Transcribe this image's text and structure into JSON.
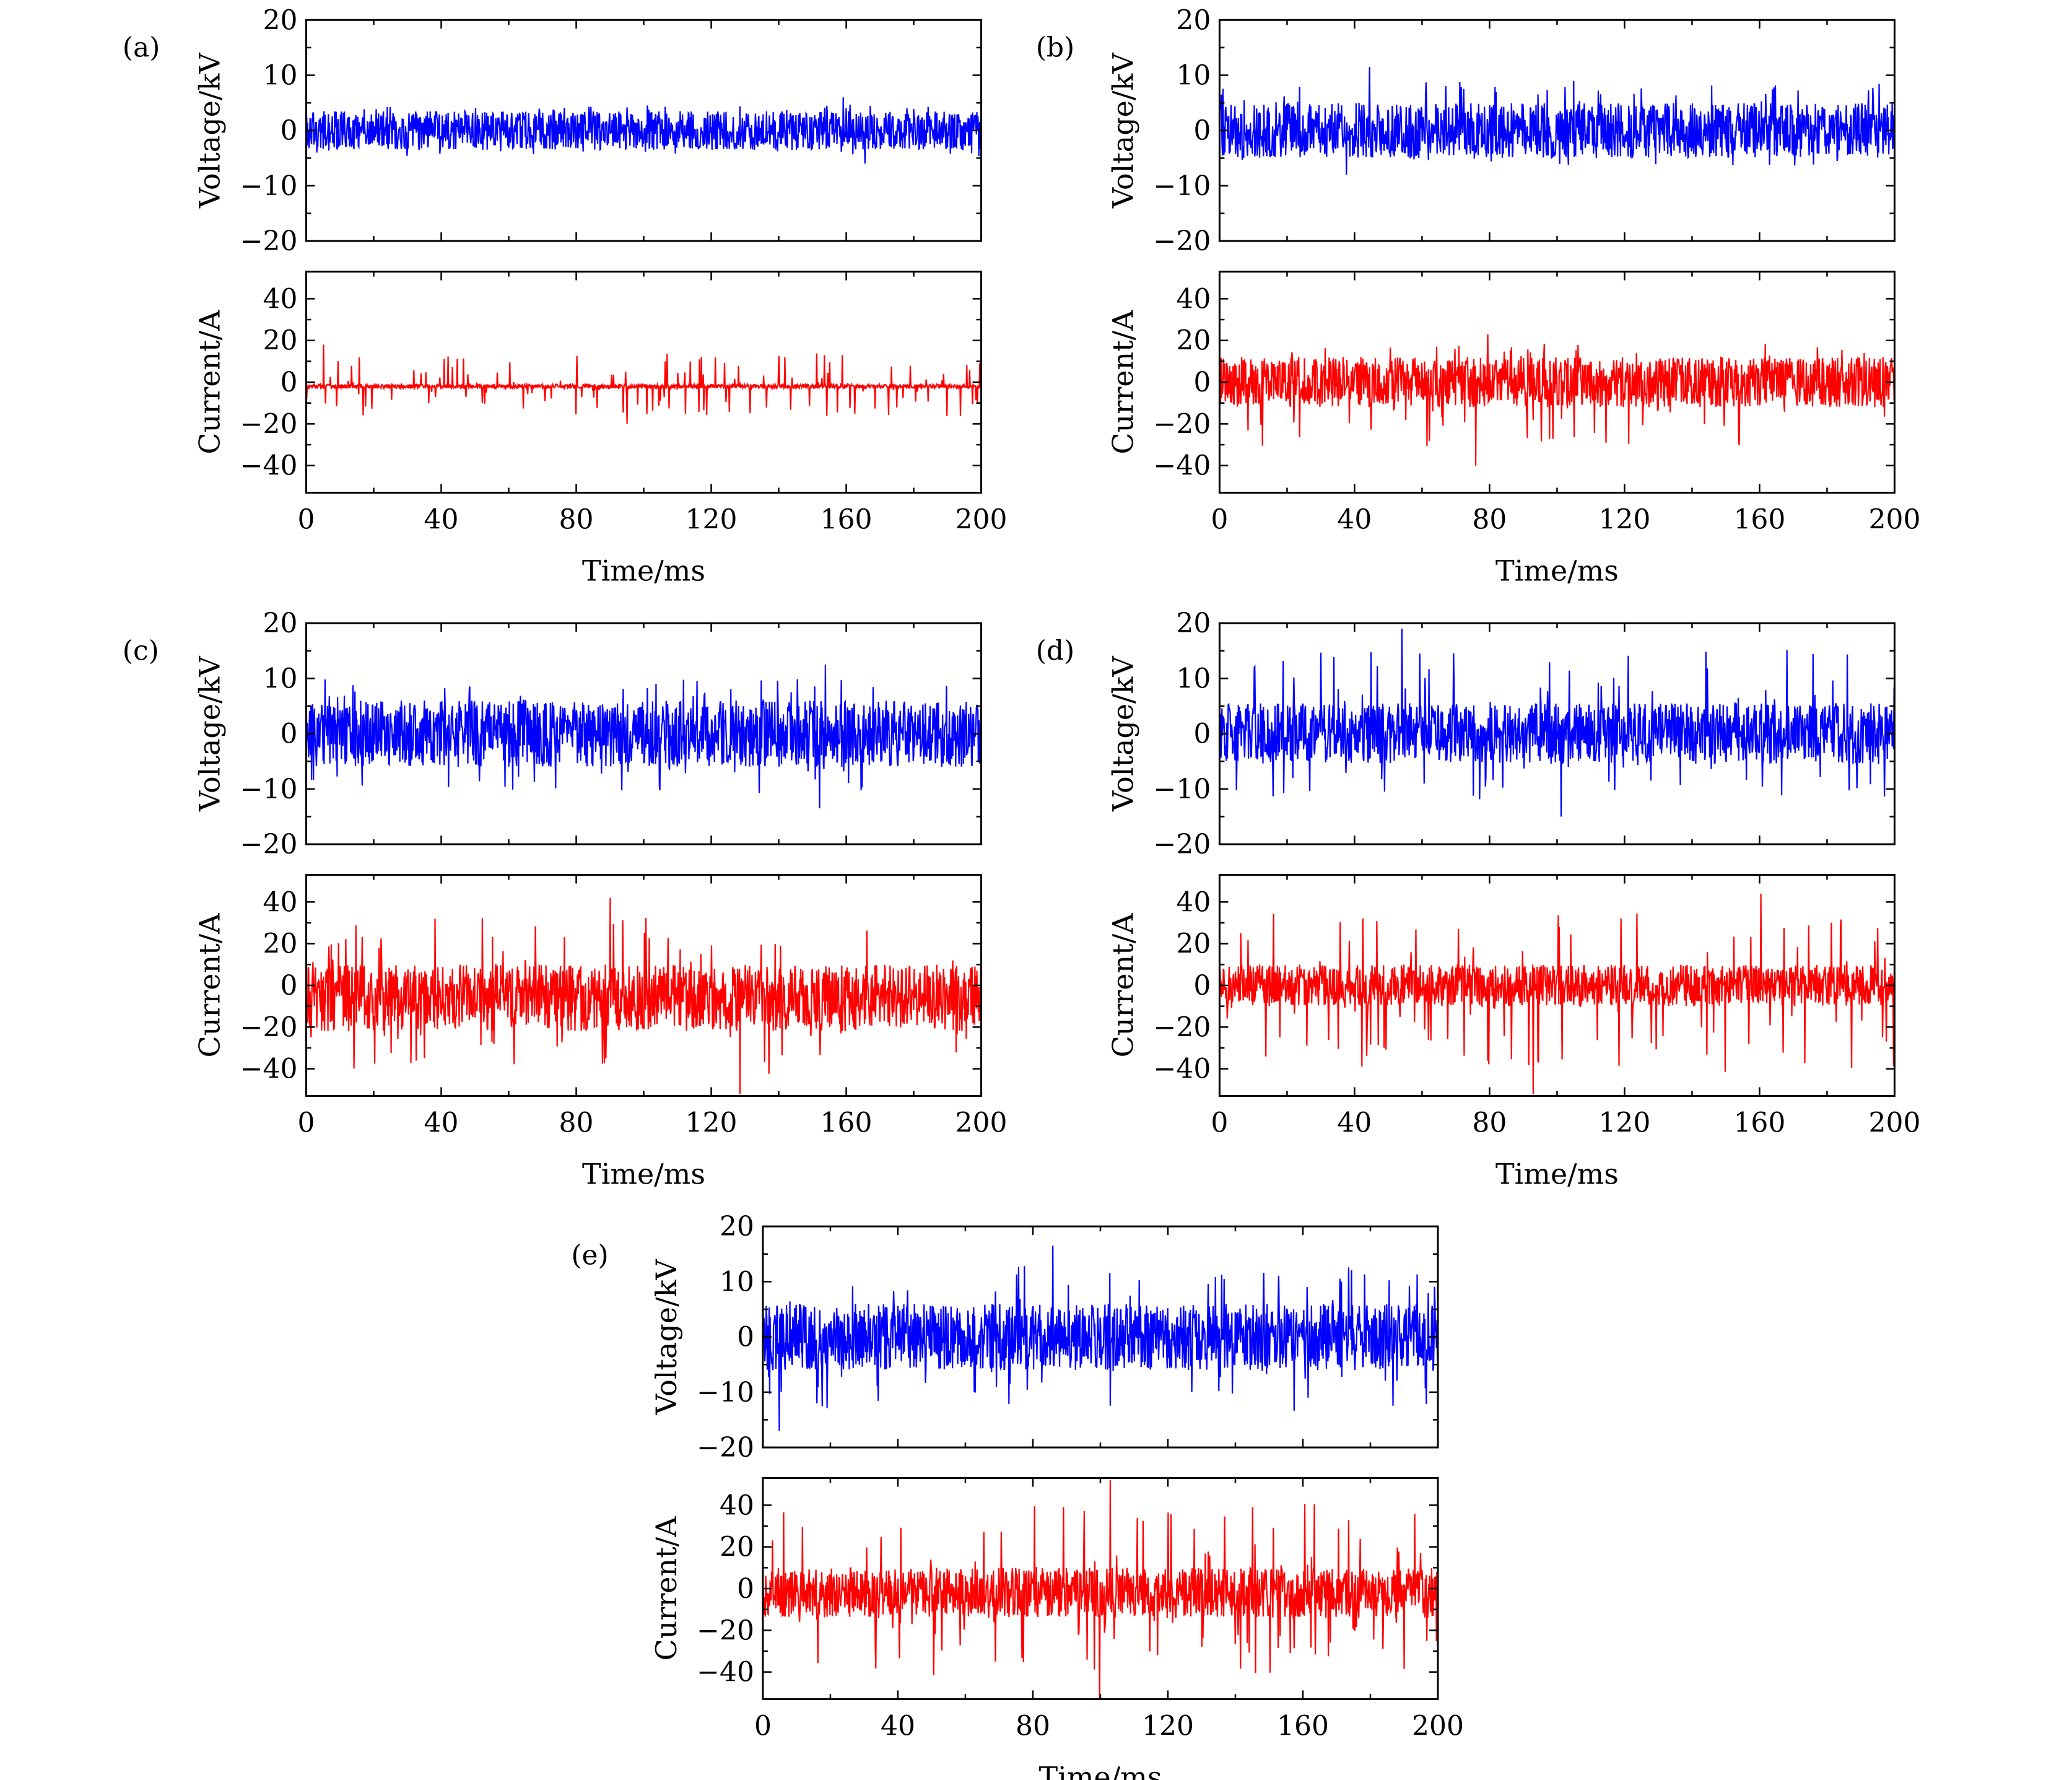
{
  "chart_data": [
    {
      "type": "line",
      "panel_label": "(a)",
      "x": {
        "label": "Time/ms",
        "range": [
          0,
          200
        ],
        "ticks": [
          "0",
          "40",
          "80",
          "120",
          "160",
          "200"
        ]
      },
      "series": [
        {
          "name": "Voltage",
          "ylabel": "Voltage/kV",
          "ylim": [
            -20,
            20
          ],
          "yticks": [
            "20",
            "10",
            "0",
            "−10",
            "−20"
          ],
          "color": "#0000ff",
          "baseline": 0,
          "noise_amplitude": 3.5,
          "max_peak": 6,
          "min_peak": -6
        },
        {
          "name": "Current",
          "ylabel": "Current/A",
          "ylim": [
            -53,
            53
          ],
          "yticks": [
            "40",
            "20",
            "0",
            "−20",
            "−40"
          ],
          "color": "#ff0000",
          "baseline": -2,
          "noise_amplitude": 1,
          "max_peak": 18,
          "min_peak": -20
        }
      ]
    },
    {
      "type": "line",
      "panel_label": "(b)",
      "x": {
        "label": "Time/ms",
        "range": [
          0,
          200
        ],
        "ticks": [
          "0",
          "40",
          "80",
          "120",
          "160",
          "200"
        ]
      },
      "series": [
        {
          "name": "Voltage",
          "ylabel": "Voltage/kV",
          "ylim": [
            -20,
            20
          ],
          "yticks": [
            "20",
            "10",
            "0",
            "−10",
            "−20"
          ],
          "color": "#0000ff",
          "baseline": 0,
          "noise_amplitude": 5,
          "max_peak": 11.5,
          "min_peak": -8
        },
        {
          "name": "Current",
          "ylabel": "Current/A",
          "ylim": [
            -53,
            53
          ],
          "yticks": [
            "40",
            "20",
            "0",
            "−20",
            "−40"
          ],
          "color": "#ff0000",
          "baseline": 0,
          "noise_amplitude": 12,
          "max_peak": 23,
          "min_peak": -40
        }
      ]
    },
    {
      "type": "line",
      "panel_label": "(c)",
      "x": {
        "label": "Time/ms",
        "range": [
          0,
          200
        ],
        "ticks": [
          "0",
          "40",
          "80",
          "120",
          "160",
          "200"
        ]
      },
      "series": [
        {
          "name": "Voltage",
          "ylabel": "Voltage/kV",
          "ylim": [
            -20,
            20
          ],
          "yticks": [
            "20",
            "10",
            "0",
            "−10",
            "−20"
          ],
          "color": "#0000ff",
          "baseline": 0,
          "noise_amplitude": 6,
          "max_peak": 12.5,
          "min_peak": -13.5
        },
        {
          "name": "Current",
          "ylabel": "Current/A",
          "ylim": [
            -53,
            53
          ],
          "yticks": [
            "40",
            "20",
            "0",
            "−20",
            "−40"
          ],
          "color": "#ff0000",
          "baseline": -6,
          "noise_amplitude": 16,
          "max_peak": 42,
          "min_peak": -52
        }
      ]
    },
    {
      "type": "line",
      "panel_label": "(d)",
      "x": {
        "label": "Time/ms",
        "range": [
          0,
          200
        ],
        "ticks": [
          "0",
          "40",
          "80",
          "120",
          "160",
          "200"
        ]
      },
      "series": [
        {
          "name": "Voltage",
          "ylabel": "Voltage/kV",
          "ylim": [
            -20,
            20
          ],
          "yticks": [
            "20",
            "10",
            "0",
            "−10",
            "−20"
          ],
          "color": "#0000ff",
          "baseline": 0,
          "noise_amplitude": 5.5,
          "max_peak": 19,
          "min_peak": -15
        },
        {
          "name": "Current",
          "ylabel": "Current/A",
          "ylim": [
            -53,
            53
          ],
          "yticks": [
            "40",
            "20",
            "0",
            "−20",
            "−40"
          ],
          "color": "#ff0000",
          "baseline": 0,
          "noise_amplitude": 10,
          "max_peak": 44,
          "min_peak": -52
        }
      ]
    },
    {
      "type": "line",
      "panel_label": "(e)",
      "x": {
        "label": "Time/ms",
        "range": [
          0,
          200
        ],
        "ticks": [
          "0",
          "40",
          "80",
          "120",
          "160",
          "200"
        ]
      },
      "series": [
        {
          "name": "Voltage",
          "ylabel": "Voltage/kV",
          "ylim": [
            -20,
            20
          ],
          "yticks": [
            "20",
            "10",
            "0",
            "−10",
            "−20"
          ],
          "color": "#0000ff",
          "baseline": 0,
          "noise_amplitude": 6,
          "max_peak": 16.5,
          "min_peak": -17
        },
        {
          "name": "Current",
          "ylabel": "Current/A",
          "ylim": [
            -53,
            53
          ],
          "yticks": [
            "40",
            "20",
            "0",
            "−20",
            "−40"
          ],
          "color": "#ff0000",
          "baseline": -2,
          "noise_amplitude": 12,
          "max_peak": 52,
          "min_peak": -53
        }
      ]
    }
  ]
}
